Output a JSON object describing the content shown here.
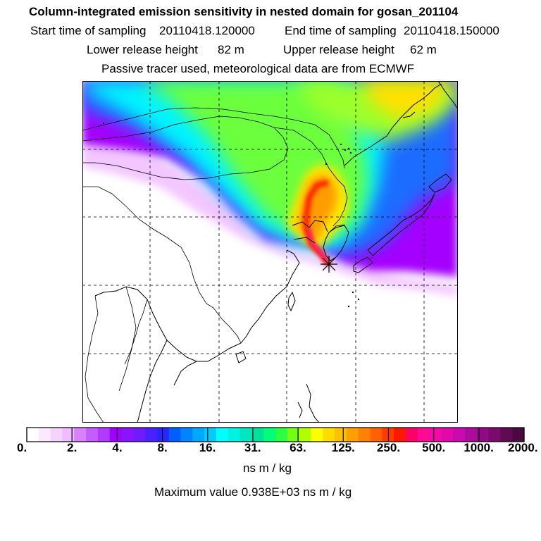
{
  "header": {
    "title": "Column-integrated emission sensitivity in nested domain for gosan_201104",
    "start_label": "Start time of sampling",
    "start_value": "20110418.120000",
    "end_label": "End time of sampling",
    "end_value": "20110418.150000",
    "lower_label": "Lower release height",
    "lower_value": "82 m",
    "upper_label": "Upper release height",
    "upper_value": "62 m",
    "note": "Passive tracer used, meteorological data are from ECMWF"
  },
  "map": {
    "marker_icon": "star-receptor-icon",
    "colors": {
      "low": "#ffffff",
      "purple": "#a200ff",
      "blue": "#1e64ff",
      "cyan": "#00ffff",
      "green": "#5aff3c",
      "yellow": "#ffee00",
      "orange": "#ffa000",
      "red": "#ff2a00",
      "magenta": "#ff0aa0"
    }
  },
  "colorbar": {
    "tick_labels": [
      "0.",
      "2.",
      "4.",
      "8.",
      "16.",
      "31.",
      "63.",
      "125.",
      "250.",
      "500.",
      "1000.",
      "2000."
    ],
    "colors": [
      "#ffffff",
      "#fbe9ff",
      "#f6d2ff",
      "#eebcff",
      "#d980ff",
      "#c45cff",
      "#b23aff",
      "#a000ff",
      "#8a14ff",
      "#6e1cff",
      "#4a20ff",
      "#2a24ff",
      "#0060ff",
      "#0084ff",
      "#00a8ff",
      "#00ccff",
      "#00ffff",
      "#00f2e0",
      "#00e6c0",
      "#00e29a",
      "#00ff78",
      "#2cff40",
      "#74ff18",
      "#b0ff00",
      "#ffff00",
      "#ffdc00",
      "#ffc000",
      "#ffa000",
      "#ff8200",
      "#ff6200",
      "#ff3c00",
      "#ff1800",
      "#ff0064",
      "#ff0a96",
      "#f20aa6",
      "#e00aaa",
      "#c80ab0",
      "#ae0a9e",
      "#920a86",
      "#7a0a6c",
      "#600a52",
      "#4a0a40"
    ],
    "unit": "ns m / kg",
    "max_label": "Maximum value",
    "max_value": "0.938E+03",
    "max_unit": "ns m / kg"
  }
}
